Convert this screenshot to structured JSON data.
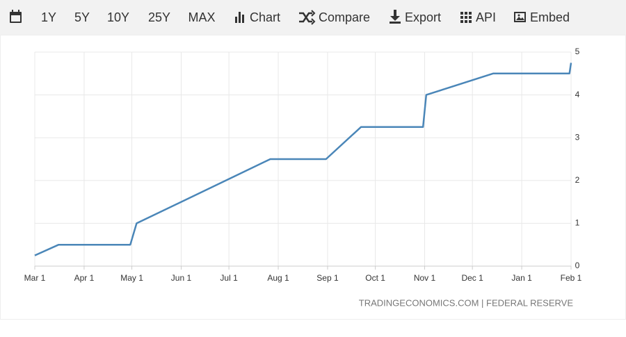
{
  "toolbar": {
    "ranges": [
      "1Y",
      "5Y",
      "10Y",
      "25Y",
      "MAX"
    ],
    "buttons": [
      "Chart",
      "Compare",
      "Export",
      "API",
      "Embed"
    ]
  },
  "chart_data": {
    "type": "line",
    "color": "#4a86b8",
    "x": [
      0,
      15,
      60,
      64,
      148,
      183,
      205,
      244,
      246,
      288,
      336,
      337
    ],
    "values": [
      0.25,
      0.5,
      0.5,
      1,
      2.5,
      2.5,
      3.25,
      3.25,
      4,
      4.5,
      4.5,
      4.75
    ],
    "xlim": [
      0,
      337
    ],
    "xticks": [
      {
        "value": 0,
        "label": "Mar 1"
      },
      {
        "value": 31,
        "label": "Apr 1"
      },
      {
        "value": 61,
        "label": "May 1"
      },
      {
        "value": 92,
        "label": "Jun 1"
      },
      {
        "value": 122,
        "label": "Jul 1"
      },
      {
        "value": 153,
        "label": "Aug 1"
      },
      {
        "value": 184,
        "label": "Sep 1"
      },
      {
        "value": 214,
        "label": "Oct 1"
      },
      {
        "value": 245,
        "label": "Nov 1"
      },
      {
        "value": 275,
        "label": "Dec 1"
      },
      {
        "value": 306,
        "label": "Jan 1"
      },
      {
        "value": 337,
        "label": "Feb 1"
      }
    ],
    "ylim": [
      0,
      5
    ],
    "yticks": [
      0,
      1,
      2,
      3,
      4,
      5
    ],
    "grid": true,
    "source": "TRADINGECONOMICS.COM | FEDERAL RESERVE"
  }
}
